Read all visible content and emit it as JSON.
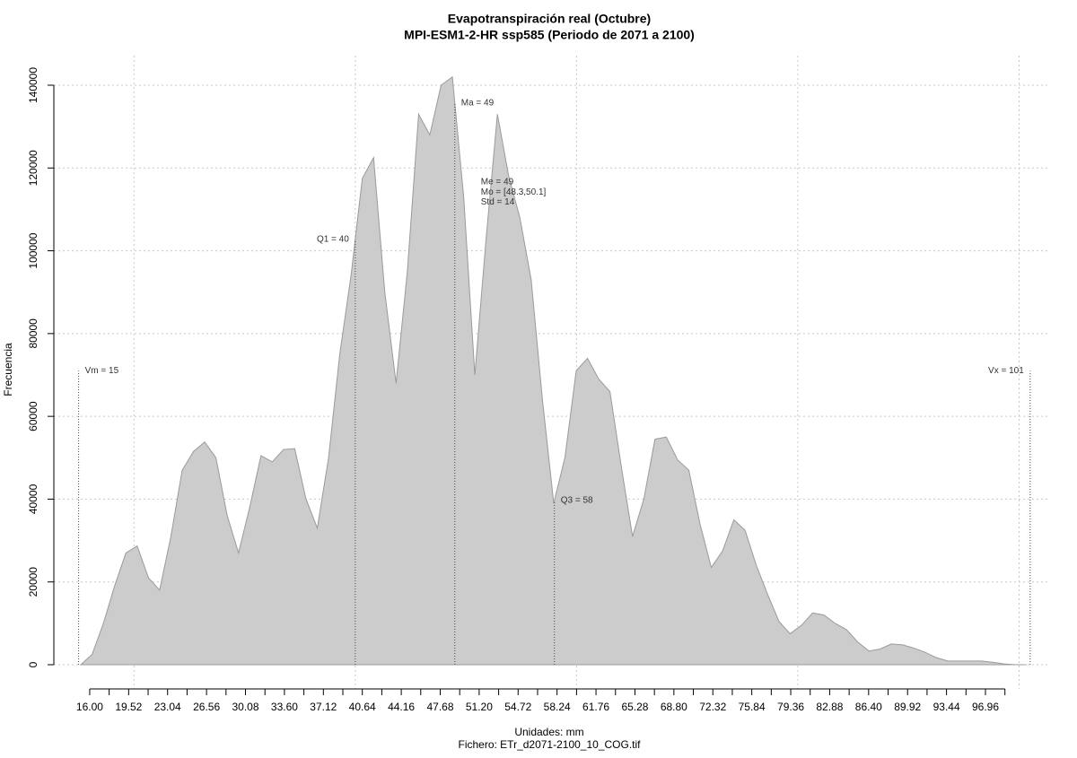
{
  "chart_data": {
    "type": "area",
    "title": "Evapotranspiración real (Octubre)",
    "subtitle": "MPI-ESM1-2-HR ssp585 (Periodo de 2071 a 2100)",
    "xlabel": "Unidades: mm",
    "xlabel2": "Fichero: ETr_d2071-2100_10_COG.tif",
    "ylabel": "Frecuencia",
    "color": "#cccccc",
    "x": [
      15.2,
      16.22,
      17.24,
      18.25,
      19.27,
      20.29,
      21.31,
      22.32,
      23.34,
      24.36,
      25.38,
      26.39,
      27.41,
      28.43,
      29.45,
      30.46,
      31.48,
      32.5,
      33.52,
      34.53,
      35.55,
      36.57,
      37.59,
      38.6,
      39.62,
      40.64,
      41.66,
      42.67,
      43.69,
      44.71,
      45.73,
      46.74,
      47.76,
      48.78,
      49.8,
      50.81,
      51.83,
      52.85,
      53.87,
      54.88,
      55.9,
      56.92,
      57.94,
      58.95,
      59.97,
      60.99,
      62.01,
      63.02,
      64.04,
      65.06,
      66.08,
      67.09,
      68.11,
      69.13,
      70.15,
      71.16,
      72.18,
      73.2,
      74.22,
      75.23,
      76.25,
      77.27,
      78.29,
      79.3,
      80.32,
      81.34,
      82.36,
      83.37,
      84.39,
      85.41,
      86.43,
      87.44,
      88.46,
      89.48,
      90.5,
      91.51,
      92.53,
      93.55,
      94.57,
      95.58,
      96.6,
      97.62,
      98.64,
      99.65,
      100.67
    ],
    "values": [
      0,
      2500,
      10000,
      19000,
      27000,
      28700,
      21000,
      18000,
      31000,
      47000,
      51500,
      53800,
      50000,
      36000,
      27000,
      38000,
      50500,
      49000,
      52000,
      52200,
      40000,
      33000,
      50000,
      75000,
      94000,
      117500,
      122500,
      90000,
      68000,
      95000,
      133000,
      128000,
      140000,
      142000,
      113000,
      70000,
      103000,
      133000,
      118000,
      108000,
      93000,
      64000,
      39000,
      50000,
      71000,
      74000,
      69000,
      66000,
      48000,
      31000,
      40000,
      54500,
      55000,
      49500,
      47000,
      34000,
      23500,
      27500,
      35000,
      32500,
      24000,
      17000,
      10500,
      7500,
      9500,
      12500,
      12000,
      10000,
      8500,
      5500,
      3300,
      3800,
      5000,
      4800,
      4000,
      3000,
      1700,
      900,
      900,
      900,
      900,
      600,
      200,
      0,
      0
    ],
    "xlim": [
      12.76,
      102.8
    ],
    "ylim": [
      -5850,
      147150
    ],
    "xticks": [
      {
        "value": 16,
        "label": "16.00"
      },
      19.52,
      23.04,
      26.56,
      30.08,
      {
        "value": 33.6,
        "label": "33.60"
      },
      37.12,
      40.64,
      44.16,
      47.68,
      {
        "value": 51.2,
        "label": "51.20"
      },
      54.72,
      58.24,
      61.76,
      65.28,
      {
        "value": 68.8,
        "label": "68.80"
      },
      72.32,
      75.84,
      79.36,
      82.88,
      {
        "value": 86.4,
        "label": "86.40"
      },
      89.92,
      93.44,
      96.96
    ],
    "xminorticks": [
      17.76,
      21.28,
      24.8,
      28.32,
      31.84,
      35.36,
      38.88,
      42.4,
      45.92,
      49.44,
      52.96,
      56.48,
      60,
      63.52,
      67.04,
      70.56,
      74.08,
      77.6,
      81.12,
      84.64,
      88.16,
      91.68,
      95.2,
      98.72
    ],
    "xgrid": [
      20,
      40,
      60,
      80,
      100
    ],
    "yticks": [
      0,
      20000,
      40000,
      60000,
      80000,
      100000,
      120000,
      140000
    ],
    "grid": true,
    "annotations": [
      {
        "text": "Vm = 15",
        "x": 15
      },
      {
        "text": "Vx = 101",
        "x": 101
      },
      {
        "text": "Q1 = 40",
        "x": 40
      },
      {
        "text": "Ma = 49",
        "x": 49
      },
      {
        "text": "Q3 = 58",
        "x": 58
      }
    ],
    "stats": [
      "Me = 49",
      "Mo = [48.3,50.1]",
      "Std = 14"
    ]
  }
}
